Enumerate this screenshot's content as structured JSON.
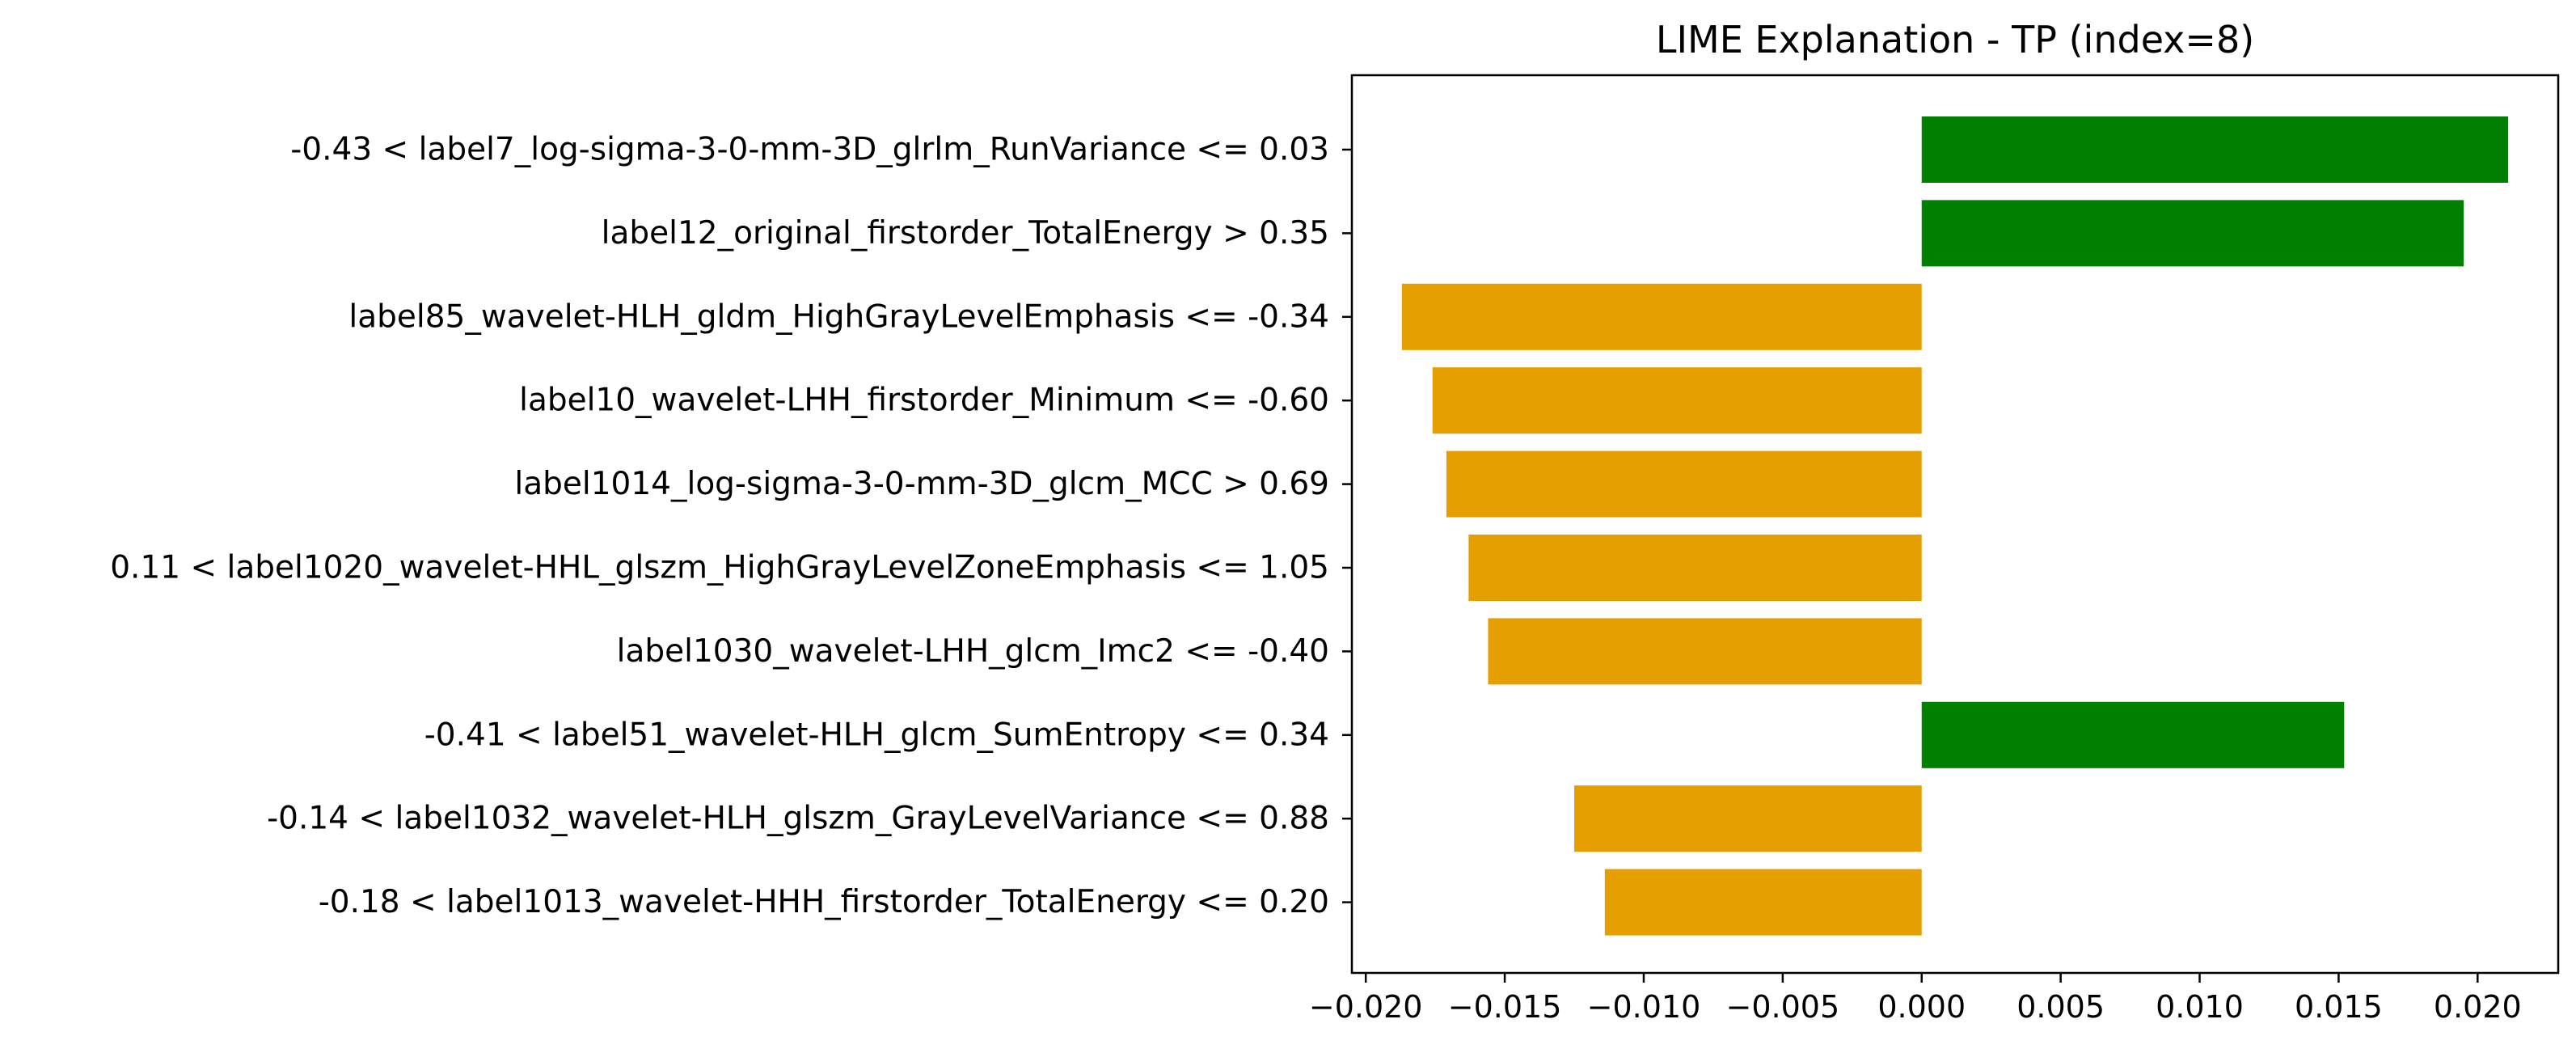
{
  "chart_data": {
    "type": "bar",
    "orientation": "horizontal",
    "title": "LIME Explanation - TP (index=8)",
    "xlabel": "",
    "ylabel": "",
    "xlim": [
      -0.0205,
      0.0229
    ],
    "xticks": [
      -0.02,
      -0.015,
      -0.01,
      -0.005,
      0.0,
      0.005,
      0.01,
      0.015,
      0.02
    ],
    "xtick_labels": [
      "−0.020",
      "−0.015",
      "−0.010",
      "−0.005",
      "0.000",
      "0.005",
      "0.010",
      "0.015",
      "0.020"
    ],
    "grid": false,
    "legend": "none",
    "positive_color": "#008000",
    "negative_color": "#E69F00",
    "categories": [
      "-0.43 < label7_log-sigma-3-0-mm-3D_glrlm_RunVariance <= 0.03",
      "label12_original_firstorder_TotalEnergy > 0.35",
      "label85_wavelet-HLH_gldm_HighGrayLevelEmphasis <= -0.34",
      "label10_wavelet-LHH_firstorder_Minimum <= -0.60",
      "label1014_log-sigma-3-0-mm-3D_glcm_MCC > 0.69",
      "0.11 < label1020_wavelet-HHL_glszm_HighGrayLevelZoneEmphasis <= 1.05",
      "label1030_wavelet-LHH_glcm_Imc2 <= -0.40",
      "-0.41 < label51_wavelet-HLH_glcm_SumEntropy <= 0.34",
      "-0.14 < label1032_wavelet-HLH_glszm_GrayLevelVariance <= 0.88",
      "-0.18 < label1013_wavelet-HHH_firstorder_TotalEnergy <= 0.20"
    ],
    "values": [
      0.0211,
      0.0195,
      -0.0187,
      -0.0176,
      -0.0171,
      -0.0163,
      -0.0156,
      0.0152,
      -0.0125,
      -0.0114
    ]
  }
}
